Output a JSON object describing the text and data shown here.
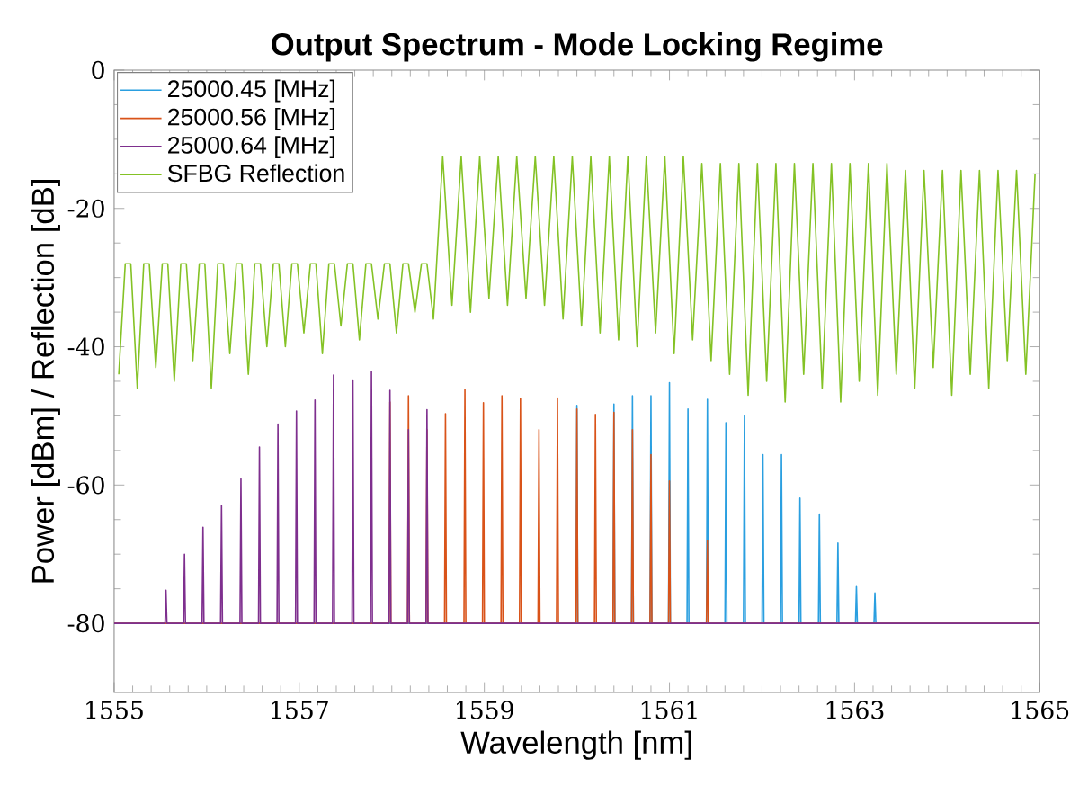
{
  "chart_data": {
    "type": "line",
    "title": "Output Spectrum - Mode Locking Regime",
    "xlabel": "Wavelength [nm]",
    "ylabel": "Power [dBm] / Reflection [dB]",
    "xlim": [
      1555,
      1565
    ],
    "xticks": [
      1555,
      1557,
      1559,
      1561,
      1563,
      1565
    ],
    "ylim": [
      -90,
      0
    ],
    "yticks": [
      -80,
      -60,
      -40,
      -20,
      0
    ],
    "legend": "top left",
    "grid": false,
    "marker": "none",
    "line_style": "solid",
    "series": [
      {
        "name": "25000.45 [MHz]",
        "color": "#2a9fe0",
        "x": [
          1555,
          1559.99,
          1560.0,
          1560.01,
          1560.39,
          1560.4,
          1560.41,
          1560.59,
          1560.6,
          1560.61,
          1560.79,
          1560.8,
          1560.81,
          1560.99,
          1561.0,
          1561.01,
          1561.19,
          1561.2,
          1561.21,
          1561.4,
          1561.41,
          1561.42,
          1561.6,
          1561.61,
          1561.62,
          1561.8,
          1561.81,
          1561.82,
          1562.0,
          1562.01,
          1562.02,
          1562.2,
          1562.21,
          1562.22,
          1562.4,
          1562.41,
          1562.42,
          1562.61,
          1562.62,
          1562.63,
          1562.81,
          1562.82,
          1562.83,
          1563.01,
          1563.02,
          1563.03,
          1563.21,
          1563.22,
          1563.23,
          1565
        ],
        "values": [
          -80,
          -80,
          -48.5,
          -80,
          -80,
          -48.3,
          -80,
          -80,
          -47.1,
          -80,
          -80,
          -47.1,
          -80,
          -80,
          -45.2,
          -80,
          -80,
          -49.0,
          -80,
          -80,
          -47.6,
          -80,
          -80,
          -51.0,
          -80,
          -80,
          -50.0,
          -80,
          -80,
          -55.6,
          -80,
          -80,
          -55.6,
          -80,
          -80,
          -61.9,
          -80,
          -80,
          -64.2,
          -80,
          -80,
          -68.4,
          -80,
          -80,
          -74.7,
          -80,
          -80,
          -75.6,
          -80,
          -80
        ]
      },
      {
        "name": "25000.56 [MHz]",
        "color": "#d95319",
        "x": [
          1555,
          1557.97,
          1557.98,
          1557.99,
          1558.17,
          1558.18,
          1558.19,
          1558.37,
          1558.38,
          1558.39,
          1558.57,
          1558.58,
          1558.59,
          1558.78,
          1558.79,
          1558.8,
          1558.98,
          1558.99,
          1559.0,
          1559.18,
          1559.19,
          1559.2,
          1559.38,
          1559.39,
          1559.4,
          1559.58,
          1559.59,
          1559.6,
          1559.78,
          1559.79,
          1559.8,
          1559.99,
          1560.0,
          1560.01,
          1560.19,
          1560.2,
          1560.21,
          1560.39,
          1560.4,
          1560.41,
          1560.59,
          1560.6,
          1560.61,
          1560.79,
          1560.8,
          1560.81,
          1560.99,
          1561.0,
          1561.01,
          1561.4,
          1561.41,
          1561.42,
          1565
        ],
        "values": [
          -80,
          -80,
          -48.0,
          -80,
          -80,
          -47.1,
          -80,
          -80,
          -52.0,
          -80,
          -80,
          -49.7,
          -80,
          -80,
          -46.2,
          -80,
          -80,
          -48.1,
          -80,
          -80,
          -47.1,
          -80,
          -80,
          -47.5,
          -80,
          -80,
          -52.0,
          -80,
          -80,
          -47.4,
          -80,
          -80,
          -49.0,
          -80,
          -80,
          -49.8,
          -80,
          -80,
          -49.5,
          -80,
          -80,
          -52.0,
          -80,
          -80,
          -55.6,
          -80,
          -80,
          -59.4,
          -80,
          -80,
          -68.0,
          -80,
          -80
        ]
      },
      {
        "name": "25000.64 [MHz]",
        "color": "#7e2f8e",
        "x": [
          1555,
          1555.55,
          1555.56,
          1555.57,
          1555.75,
          1555.76,
          1555.77,
          1555.95,
          1555.96,
          1555.97,
          1556.15,
          1556.16,
          1556.17,
          1556.36,
          1556.37,
          1556.38,
          1556.56,
          1556.57,
          1556.58,
          1556.76,
          1556.77,
          1556.78,
          1556.96,
          1556.97,
          1556.98,
          1557.16,
          1557.17,
          1557.18,
          1557.36,
          1557.37,
          1557.38,
          1557.57,
          1557.58,
          1557.59,
          1557.77,
          1557.78,
          1557.79,
          1557.97,
          1557.98,
          1557.99,
          1558.17,
          1558.18,
          1558.19,
          1558.37,
          1558.38,
          1558.39,
          1565
        ],
        "values": [
          -80,
          -80,
          -75.2,
          -80,
          -80,
          -70.0,
          -80,
          -80,
          -66.1,
          -80,
          -80,
          -63.0,
          -80,
          -80,
          -59.1,
          -80,
          -80,
          -54.5,
          -80,
          -80,
          -51.2,
          -80,
          -80,
          -49.3,
          -80,
          -80,
          -47.7,
          -80,
          -80,
          -44.1,
          -80,
          -80,
          -44.8,
          -80,
          -80,
          -43.6,
          -80,
          -80,
          -46.3,
          -80,
          -80,
          -52.0,
          -80,
          -80,
          -49.1,
          -80,
          -80
        ]
      },
      {
        "name": "SFBG Reflection",
        "color": "#84c225",
        "x": [
          1555.05,
          1555.12,
          1555.18,
          1555.25,
          1555.32,
          1555.38,
          1555.45,
          1555.52,
          1555.58,
          1555.65,
          1555.72,
          1555.78,
          1555.85,
          1555.92,
          1555.98,
          1556.05,
          1556.12,
          1556.18,
          1556.25,
          1556.32,
          1556.38,
          1556.45,
          1556.52,
          1556.58,
          1556.65,
          1556.72,
          1556.78,
          1556.85,
          1556.92,
          1556.98,
          1557.05,
          1557.12,
          1557.18,
          1557.25,
          1557.32,
          1557.38,
          1557.45,
          1557.52,
          1557.58,
          1557.65,
          1557.72,
          1557.78,
          1557.85,
          1557.92,
          1557.98,
          1558.05,
          1558.12,
          1558.18,
          1558.25,
          1558.32,
          1558.38,
          1558.45,
          1558.55,
          1558.65,
          1558.75,
          1558.85,
          1558.95,
          1559.05,
          1559.15,
          1559.25,
          1559.35,
          1559.45,
          1559.55,
          1559.65,
          1559.75,
          1559.85,
          1559.95,
          1560.05,
          1560.15,
          1560.25,
          1560.35,
          1560.45,
          1560.55,
          1560.65,
          1560.75,
          1560.85,
          1560.95,
          1561.05,
          1561.15,
          1561.25,
          1561.35,
          1561.45,
          1561.55,
          1561.65,
          1561.75,
          1561.85,
          1561.95,
          1562.05,
          1562.15,
          1562.25,
          1562.35,
          1562.45,
          1562.55,
          1562.65,
          1562.75,
          1562.85,
          1562.95,
          1563.05,
          1563.15,
          1563.25,
          1563.35,
          1563.45,
          1563.55,
          1563.65,
          1563.75,
          1563.85,
          1563.95,
          1564.05,
          1564.15,
          1564.25,
          1564.35,
          1564.45,
          1564.55,
          1564.65,
          1564.75,
          1564.85,
          1564.95
        ],
        "values": [
          -44,
          -28,
          -28,
          -46,
          -28,
          -28,
          -43,
          -28,
          -28,
          -45,
          -28,
          -28,
          -42,
          -28,
          -28,
          -46,
          -28,
          -28,
          -41,
          -28,
          -28,
          -44,
          -28,
          -28,
          -40,
          -28,
          -28,
          -40,
          -28,
          -28,
          -38,
          -28,
          -28,
          -41,
          -28,
          -28,
          -37,
          -28,
          -28,
          -39,
          -28,
          -28,
          -36,
          -28,
          -28,
          -38,
          -28,
          -28,
          -35,
          -28,
          -28,
          -36,
          -12.5,
          -34,
          -12.5,
          -35,
          -12.5,
          -33,
          -12.5,
          -34,
          -12.5,
          -33,
          -12.5,
          -34,
          -12.5,
          -36,
          -12.5,
          -37,
          -12.5,
          -38,
          -12.5,
          -39,
          -12.5,
          -40,
          -12.5,
          -38,
          -12.5,
          -41,
          -12.5,
          -39,
          -13.5,
          -42,
          -13.5,
          -44,
          -13.5,
          -47,
          -13.5,
          -45,
          -13.5,
          -48,
          -13.5,
          -44,
          -13.5,
          -46,
          -13.5,
          -48,
          -13.5,
          -45,
          -13.5,
          -47,
          -13.5,
          -44,
          -14.5,
          -46,
          -14.5,
          -43,
          -14.5,
          -47,
          -14.5,
          -44,
          -14.5,
          -46,
          -14.5,
          -42,
          -14.5,
          -44,
          -15
        ]
      }
    ]
  }
}
